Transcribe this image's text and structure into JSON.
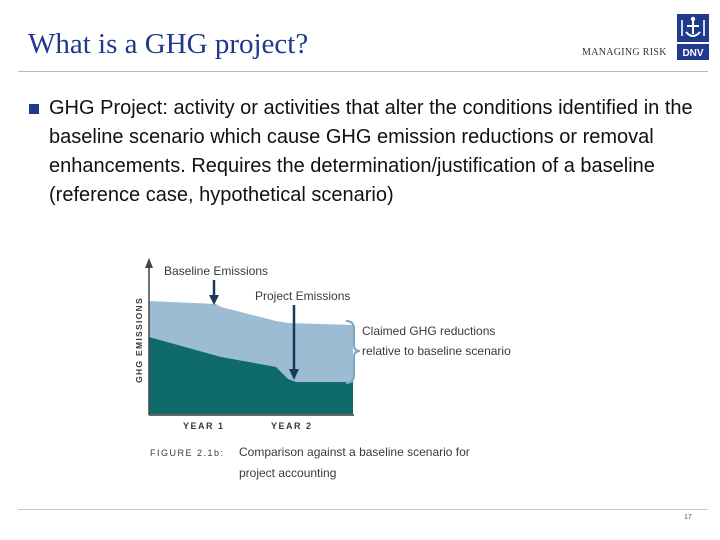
{
  "header": {
    "title": "What is a GHG project?",
    "tagline": "MANAGING RISK",
    "logo_text": "DNV"
  },
  "content": {
    "bullet": "GHG Project: activity or activities that alter the conditions identified in the baseline scenario which cause GHG emission reductions or removal enhancements. Requires the determination/justification of a baseline (reference case, hypothetical scenario)"
  },
  "figure": {
    "y_axis_label": "GHG EMISSIONS",
    "baseline_label": "Baseline Emissions",
    "project_label": "Project Emissions",
    "claimed_label_line1": "Claimed GHG reductions",
    "claimed_label_line2": "relative to baseline scenario",
    "x_labels": [
      "YEAR 1",
      "YEAR 2"
    ],
    "caption_prefix": "FIGURE 2.1b:",
    "caption_line1": "Comparison against a baseline scenario for",
    "caption_line2": "project accounting",
    "colors": {
      "baseline_fill": "#9bbcd2",
      "project_fill": "#0f6a6a",
      "text": "#3a3a3a"
    }
  },
  "footer": {
    "page_number": "17"
  }
}
